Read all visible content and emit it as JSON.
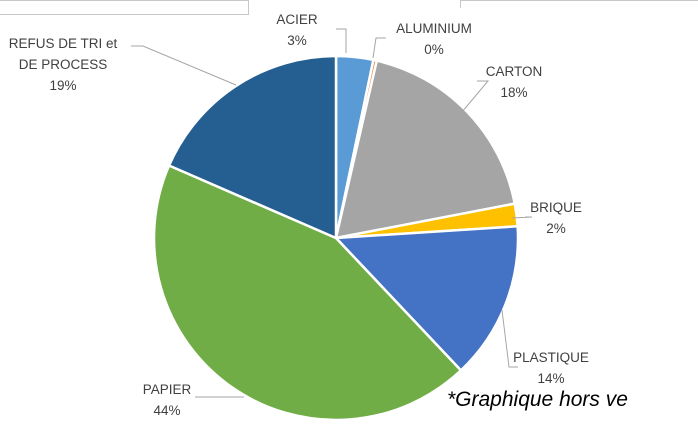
{
  "chart_data": {
    "type": "pie",
    "title": "",
    "slices": [
      {
        "lines": [
          "ACIER",
          "3%"
        ],
        "value": 3.3,
        "color": "#5b9bd5"
      },
      {
        "lines": [
          "ALUMINIUM",
          "0%"
        ],
        "value": 0.3,
        "color": "#ed7d31"
      },
      {
        "lines": [
          "CARTON",
          "18%"
        ],
        "value": 18.4,
        "color": "#a5a5a5"
      },
      {
        "lines": [
          "BRIQUE",
          "2%"
        ],
        "value": 2.0,
        "color": "#ffc000"
      },
      {
        "lines": [
          "PLASTIQUE",
          "14%"
        ],
        "value": 14.0,
        "color": "#4472c4"
      },
      {
        "lines": [
          "PAPIER",
          "44%"
        ],
        "value": 43.6,
        "color": "#70ad47"
      },
      {
        "lines": [
          "REFUS DE TRI et",
          "DE PROCESS",
          "19%"
        ],
        "value": 18.5,
        "color": "#255e91"
      }
    ]
  },
  "footnote": "*Graphique hors ve"
}
